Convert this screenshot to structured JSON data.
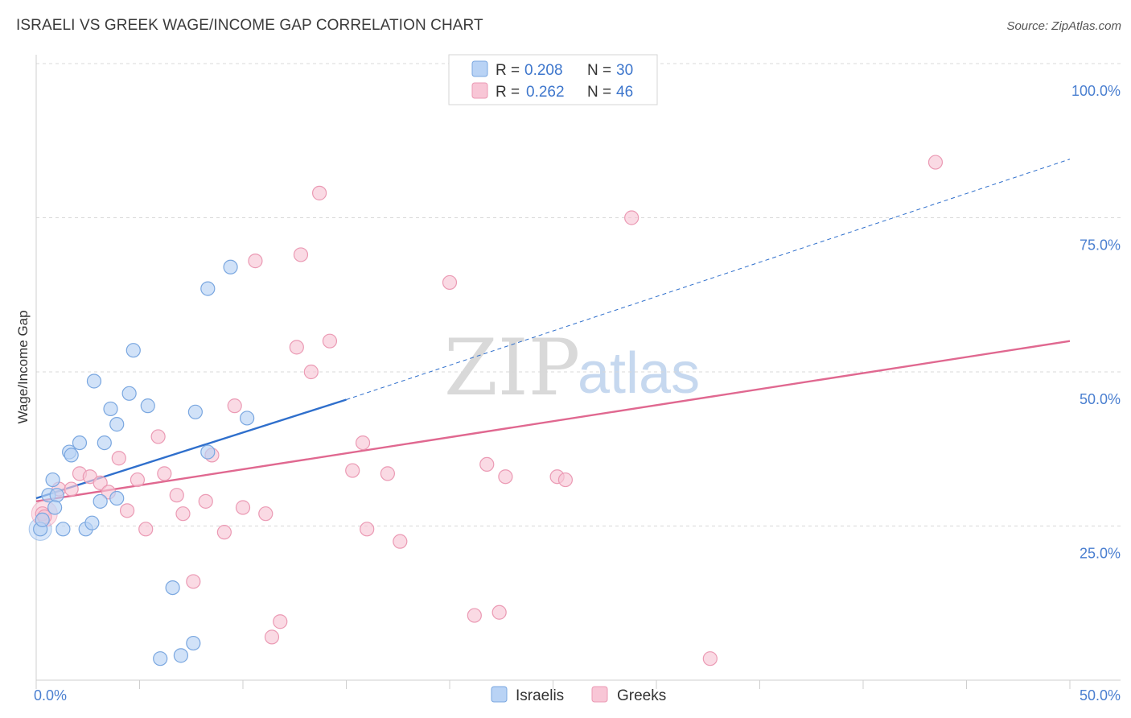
{
  "title": "ISRAELI VS GREEK WAGE/INCOME GAP CORRELATION CHART",
  "source": "Source: ZipAtlas.com",
  "watermark": {
    "zip": "ZIP",
    "atlas": "atlas"
  },
  "colors": {
    "israelis_fill": "#b9d3f5",
    "israelis_stroke": "#7aa7e0",
    "israelis_line": "#2f6fcc",
    "greeks_fill": "#f8c6d6",
    "greeks_stroke": "#eb9ab4",
    "greeks_line": "#e06890",
    "grid": "#d8d8d8",
    "tick_text": "#4a7fd0"
  },
  "legend": {
    "israelis": {
      "r_label": "R =",
      "r_value": "0.208",
      "n_label": "N =",
      "n_value": "30"
    },
    "greeks": {
      "r_label": "R =",
      "r_value": "0.262",
      "n_label": "N =",
      "n_value": "46"
    }
  },
  "chart_data": {
    "type": "scatter",
    "title": "ISRAELI VS GREEK WAGE/INCOME GAP CORRELATION CHART",
    "xlabel": "",
    "ylabel": "Wage/Income Gap",
    "xlim": [
      0,
      50
    ],
    "ylim": [
      0,
      100
    ],
    "x_tick_labels": [
      "0.0%",
      "50.0%"
    ],
    "y_tick_labels": [
      "25.0%",
      "50.0%",
      "75.0%",
      "100.0%"
    ],
    "y_ticks": [
      25,
      50,
      75,
      100
    ],
    "grid": true,
    "legend_position": "top-center",
    "series": [
      {
        "name": "Israelis",
        "points": [
          [
            0.2,
            24.5
          ],
          [
            0.3,
            26.0
          ],
          [
            0.6,
            30.0
          ],
          [
            0.8,
            32.5
          ],
          [
            1.0,
            30.0
          ],
          [
            0.9,
            28.0
          ],
          [
            1.3,
            24.5
          ],
          [
            1.6,
            37.0
          ],
          [
            1.7,
            36.5
          ],
          [
            2.1,
            38.5
          ],
          [
            2.4,
            24.5
          ],
          [
            2.7,
            25.5
          ],
          [
            2.8,
            48.5
          ],
          [
            3.1,
            29.0
          ],
          [
            3.3,
            38.5
          ],
          [
            3.6,
            44.0
          ],
          [
            3.9,
            29.5
          ],
          [
            3.9,
            41.5
          ],
          [
            4.5,
            46.5
          ],
          [
            4.7,
            53.5
          ],
          [
            5.4,
            44.5
          ],
          [
            6.0,
            3.5
          ],
          [
            6.6,
            15.0
          ],
          [
            7.0,
            4.0
          ],
          [
            7.6,
            6.0
          ],
          [
            7.7,
            43.5
          ],
          [
            8.3,
            37.0
          ],
          [
            8.3,
            63.5
          ],
          [
            9.4,
            67.0
          ],
          [
            10.2,
            42.5
          ]
        ],
        "trend": {
          "x0": 0,
          "y0": 29.5,
          "x1": 15,
          "y1": 45.5,
          "dashed_to_x": 50,
          "dashed_to_y": 84.5
        }
      },
      {
        "name": "Greeks",
        "points": [
          [
            0.3,
            27.0
          ],
          [
            0.4,
            26.5
          ],
          [
            1.1,
            31.0
          ],
          [
            1.7,
            31.0
          ],
          [
            2.1,
            33.5
          ],
          [
            2.6,
            33.0
          ],
          [
            3.1,
            32.0
          ],
          [
            3.5,
            30.5
          ],
          [
            4.0,
            36.0
          ],
          [
            4.4,
            27.5
          ],
          [
            4.9,
            32.5
          ],
          [
            5.3,
            24.5
          ],
          [
            5.9,
            39.5
          ],
          [
            6.2,
            33.5
          ],
          [
            6.8,
            30.0
          ],
          [
            7.1,
            27.0
          ],
          [
            7.6,
            16.0
          ],
          [
            8.2,
            29.0
          ],
          [
            8.5,
            36.5
          ],
          [
            9.1,
            24.0
          ],
          [
            9.6,
            44.5
          ],
          [
            10.0,
            28.0
          ],
          [
            10.6,
            68.0
          ],
          [
            11.1,
            27.0
          ],
          [
            11.4,
            7.0
          ],
          [
            11.8,
            9.5
          ],
          [
            12.6,
            54.0
          ],
          [
            12.8,
            69.0
          ],
          [
            13.3,
            50.0
          ],
          [
            13.7,
            79.0
          ],
          [
            14.2,
            55.0
          ],
          [
            15.3,
            34.0
          ],
          [
            15.8,
            38.5
          ],
          [
            16.0,
            24.5
          ],
          [
            17.0,
            33.5
          ],
          [
            17.6,
            22.5
          ],
          [
            20.0,
            64.5
          ],
          [
            21.2,
            10.5
          ],
          [
            21.8,
            35.0
          ],
          [
            22.4,
            11.0
          ],
          [
            22.7,
            33.0
          ],
          [
            25.2,
            33.0
          ],
          [
            25.6,
            32.5
          ],
          [
            28.8,
            75.0
          ],
          [
            32.6,
            3.5
          ],
          [
            43.5,
            84.0
          ]
        ],
        "trend": {
          "x0": 0,
          "y0": 29.0,
          "x1": 50,
          "y1": 55.0
        }
      }
    ]
  },
  "bottom_legend": {
    "israelis": "Israelis",
    "greeks": "Greeks"
  }
}
